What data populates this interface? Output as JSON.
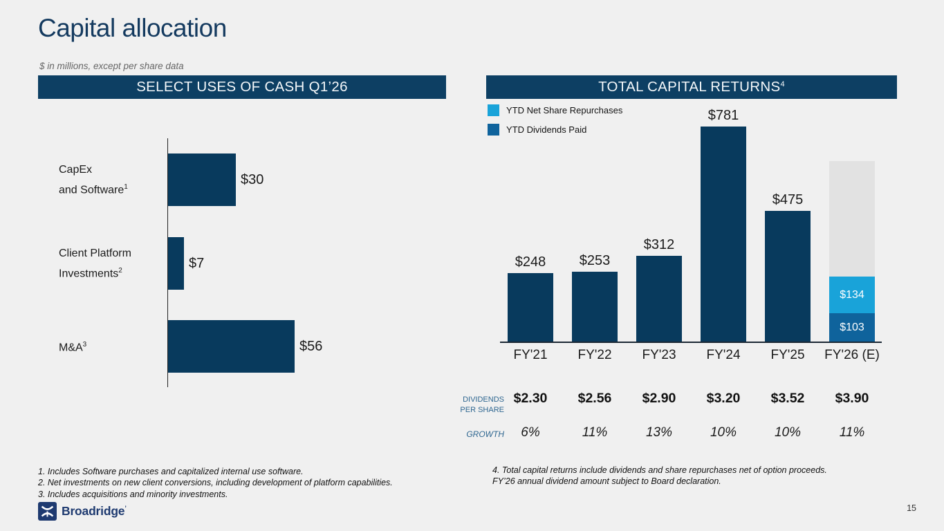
{
  "slide": {
    "title": "Capital allocation",
    "subtitle": "$ in millions, except per share data",
    "page_number": "15",
    "logo_text": "Broadridge"
  },
  "colors": {
    "background": "#f0f0f0",
    "navy": "#083a5d",
    "header_bg": "#0d3f63",
    "light_blue": "#19a3d9",
    "mid_blue": "#0f639c",
    "gray_bar": "#e2e2e2",
    "title_text": "#143a5f",
    "table_label": "#2e6690"
  },
  "left_panel": {
    "header": "SELECT USES OF CASH Q1’26",
    "footnotes": [
      "1. Includes Software purchases and capitalized internal use software.",
      "2. Net investments on new client conversions, including development of platform capabilities.",
      "3. Includes acquisitions and minority investments."
    ]
  },
  "right_panel": {
    "header": "TOTAL CAPITAL RETURNS",
    "header_superscript": "4",
    "legend": [
      {
        "label": "YTD Net Share Repurchases",
        "color_key": "light_blue"
      },
      {
        "label": "YTD Dividends Paid",
        "color_key": "mid_blue"
      }
    ],
    "footnotes": [
      "4. Total capital returns include dividends and share repurchases net of option proceeds.",
      "FY’26 annual dividend amount subject to Board declaration."
    ]
  },
  "chart_data": [
    {
      "type": "bar",
      "orientation": "horizontal",
      "title": "SELECT USES OF CASH Q1’26",
      "categories": [
        {
          "lines": [
            "CapEx",
            "and Software"
          ],
          "superscript": "1"
        },
        {
          "lines": [
            "Client Platform",
            "Investments"
          ],
          "superscript": "2"
        },
        {
          "lines": [
            "M&A"
          ],
          "superscript": "3"
        }
      ],
      "values": [
        30,
        7,
        56
      ],
      "value_labels": [
        "$30",
        "$7",
        "$56"
      ],
      "xlim": [
        0,
        60
      ],
      "grid": false,
      "bar_color_key": "navy"
    },
    {
      "type": "bar",
      "orientation": "vertical",
      "title": "TOTAL CAPITAL RETURNS",
      "categories": [
        "FY'21",
        "FY'22",
        "FY'23",
        "FY'24",
        "FY'25",
        "FY'26 (E)"
      ],
      "values": [
        248,
        253,
        312,
        781,
        475,
        null
      ],
      "value_labels": [
        "$248",
        "$253",
        "$312",
        "$781",
        "$475",
        ""
      ],
      "bar_color_key": "navy",
      "ylim": [
        0,
        880
      ],
      "grid": false,
      "legend_position": "top-left",
      "fy26_stacked_segments": [
        {
          "name": "YTD Dividends Paid",
          "value": 103,
          "label": "$103",
          "color_key": "mid_blue"
        },
        {
          "name": "YTD Net Share Repurchases",
          "value": 134,
          "label": "$134",
          "color_key": "light_blue"
        },
        {
          "name": "projected-remainder-unlabeled",
          "value": 420,
          "label": "",
          "color_key": "gray_bar"
        }
      ],
      "table": {
        "rows": [
          {
            "label_lines": [
              "DIVIDENDS",
              "PER SHARE"
            ],
            "values": [
              "$2.30",
              "$2.56",
              "$2.90",
              "$3.20",
              "$3.52",
              "$3.90"
            ]
          },
          {
            "label_lines": [
              "GROWTH"
            ],
            "values": [
              "6%",
              "11%",
              "13%",
              "10%",
              "10%",
              "11%"
            ]
          }
        ]
      }
    }
  ]
}
